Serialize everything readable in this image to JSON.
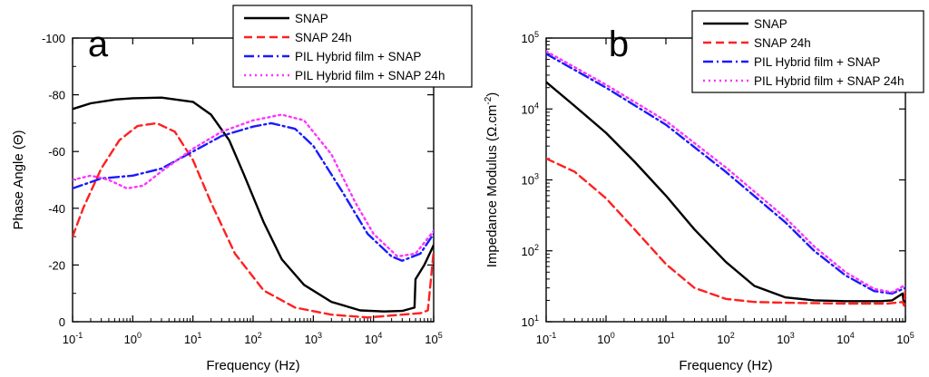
{
  "chart_data": [
    {
      "type": "line",
      "panel_label": "a",
      "xlabel": "Frequency (Hz)",
      "ylabel": "Phase Angle (Θ)",
      "xscale": "log",
      "xlim": [
        0.1,
        100000
      ],
      "ylim": [
        0,
        -100
      ],
      "xticks": [
        0.1,
        1,
        10,
        100,
        1000,
        10000,
        100000
      ],
      "xtick_labels": [
        {
          "base": "10",
          "exp": "-1"
        },
        {
          "base": "10",
          "exp": "0"
        },
        {
          "base": "10",
          "exp": "1"
        },
        {
          "base": "10",
          "exp": "2"
        },
        {
          "base": "10",
          "exp": "3"
        },
        {
          "base": "10",
          "exp": "4"
        },
        {
          "base": "10",
          "exp": "5"
        }
      ],
      "yticks": [
        -100,
        -80,
        -60,
        -40,
        -20,
        0
      ],
      "ytick_labels": [
        "-100",
        "-80",
        "-60",
        "-40",
        "-20",
        "0"
      ],
      "legend_position": "top-right",
      "series": [
        {
          "name": "SNAP",
          "color": "#000000",
          "dash": "solid",
          "points": [
            [
              0.1,
              -75
            ],
            [
              0.2,
              -77
            ],
            [
              0.5,
              -78.3
            ],
            [
              1,
              -78.8
            ],
            [
              3,
              -79
            ],
            [
              10,
              -77.5
            ],
            [
              20,
              -73
            ],
            [
              40,
              -64
            ],
            [
              70,
              -52
            ],
            [
              150,
              -35
            ],
            [
              300,
              -22
            ],
            [
              700,
              -13
            ],
            [
              2000,
              -7
            ],
            [
              6000,
              -4
            ],
            [
              15000,
              -3.6
            ],
            [
              30000,
              -3.8
            ],
            [
              48000,
              -5
            ],
            [
              50000,
              -15
            ],
            [
              70000,
              -20
            ],
            [
              100000,
              -27
            ]
          ]
        },
        {
          "name": "SNAP 24h",
          "color": "#ff2020",
          "dash": "dashed",
          "points": [
            [
              0.1,
              -30
            ],
            [
              0.15,
              -40
            ],
            [
              0.3,
              -54
            ],
            [
              0.6,
              -64
            ],
            [
              1.2,
              -69
            ],
            [
              2.5,
              -70
            ],
            [
              5,
              -67
            ],
            [
              10,
              -57
            ],
            [
              20,
              -42
            ],
            [
              50,
              -24
            ],
            [
              150,
              -11
            ],
            [
              500,
              -5
            ],
            [
              2000,
              -2.5
            ],
            [
              8000,
              -1.5
            ],
            [
              30000,
              -2.5
            ],
            [
              60000,
              -3
            ],
            [
              80000,
              -4
            ],
            [
              90000,
              -15
            ],
            [
              100000,
              -25
            ]
          ]
        },
        {
          "name": "PIL Hybrid film + SNAP",
          "color": "#1a1aff",
          "dash": "dashdot",
          "points": [
            [
              0.1,
              -47
            ],
            [
              0.3,
              -50.5
            ],
            [
              1,
              -51.5
            ],
            [
              3,
              -54
            ],
            [
              10,
              -60
            ],
            [
              30,
              -65.5
            ],
            [
              100,
              -68.8
            ],
            [
              200,
              -70
            ],
            [
              500,
              -68
            ],
            [
              1000,
              -62
            ],
            [
              3000,
              -46
            ],
            [
              8000,
              -31
            ],
            [
              20000,
              -23
            ],
            [
              30000,
              -21.5
            ],
            [
              60000,
              -24
            ],
            [
              100000,
              -31
            ]
          ]
        },
        {
          "name": "PIL Hybrid film + SNAP 24h",
          "color": "#ff33ff",
          "dash": "dotted",
          "points": [
            [
              0.1,
              -50
            ],
            [
              0.2,
              -51.5
            ],
            [
              0.4,
              -50
            ],
            [
              0.8,
              -47
            ],
            [
              1.5,
              -48
            ],
            [
              3,
              -53
            ],
            [
              10,
              -61
            ],
            [
              30,
              -67
            ],
            [
              100,
              -71
            ],
            [
              300,
              -73
            ],
            [
              700,
              -71
            ],
            [
              2000,
              -59
            ],
            [
              5000,
              -42
            ],
            [
              10000,
              -31
            ],
            [
              25000,
              -23
            ],
            [
              50000,
              -24
            ],
            [
              100000,
              -32
            ]
          ]
        }
      ]
    },
    {
      "type": "line",
      "panel_label": "b",
      "xlabel": "Frequency (Hz)",
      "ylabel_main": "Impedance Modulus (Ω.cm",
      "ylabel_sup": "-2",
      "ylabel_close": ")",
      "xscale": "log",
      "yscale": "log",
      "xlim": [
        0.1,
        100000
      ],
      "ylim": [
        10,
        100000
      ],
      "xticks": [
        0.1,
        1,
        10,
        100,
        1000,
        10000,
        100000
      ],
      "xtick_labels": [
        {
          "base": "10",
          "exp": "-1"
        },
        {
          "base": "10",
          "exp": "0"
        },
        {
          "base": "10",
          "exp": "1"
        },
        {
          "base": "10",
          "exp": "2"
        },
        {
          "base": "10",
          "exp": "3"
        },
        {
          "base": "10",
          "exp": "4"
        },
        {
          "base": "10",
          "exp": "5"
        }
      ],
      "yticks": [
        10,
        100,
        1000,
        10000,
        100000
      ],
      "ytick_labels": [
        {
          "base": "10",
          "exp": "1"
        },
        {
          "base": "10",
          "exp": "2"
        },
        {
          "base": "10",
          "exp": "3"
        },
        {
          "base": "10",
          "exp": "4"
        },
        {
          "base": "10",
          "exp": "5"
        }
      ],
      "legend_position": "top-right",
      "series": [
        {
          "name": "SNAP",
          "color": "#000000",
          "dash": "solid",
          "points": [
            [
              0.1,
              24000
            ],
            [
              0.3,
              11000
            ],
            [
              1,
              4600
            ],
            [
              3,
              1800
            ],
            [
              10,
              600
            ],
            [
              30,
              200
            ],
            [
              100,
              70
            ],
            [
              300,
              32
            ],
            [
              1000,
              22
            ],
            [
              3000,
              20
            ],
            [
              10000,
              19.5
            ],
            [
              40000,
              19.5
            ],
            [
              60000,
              20
            ],
            [
              90000,
              25
            ],
            [
              95000,
              17
            ],
            [
              100000,
              27
            ]
          ]
        },
        {
          "name": "SNAP 24h",
          "color": "#ff2020",
          "dash": "dashed",
          "points": [
            [
              0.1,
              2000
            ],
            [
              0.3,
              1300
            ],
            [
              1,
              550
            ],
            [
              3,
              200
            ],
            [
              10,
              65
            ],
            [
              30,
              30
            ],
            [
              100,
              21
            ],
            [
              300,
              19
            ],
            [
              1000,
              18.5
            ],
            [
              10000,
              18
            ],
            [
              50000,
              18
            ],
            [
              90000,
              19
            ],
            [
              95000,
              17
            ],
            [
              100000,
              28
            ]
          ]
        },
        {
          "name": "PIL Hybrid film + SNAP",
          "color": "#1a1aff",
          "dash": "dashdot",
          "points": [
            [
              0.1,
              60000
            ],
            [
              1,
              20000
            ],
            [
              10,
              6000
            ],
            [
              100,
              1300
            ],
            [
              1000,
              250
            ],
            [
              3000,
              100
            ],
            [
              10000,
              45
            ],
            [
              30000,
              27
            ],
            [
              60000,
              25
            ],
            [
              100000,
              30
            ]
          ]
        },
        {
          "name": "PIL Hybrid film + SNAP 24h",
          "color": "#ff33ff",
          "dash": "dotted",
          "points": [
            [
              0.1,
              65000
            ],
            [
              1,
              22000
            ],
            [
              10,
              6800
            ],
            [
              100,
              1500
            ],
            [
              1000,
              290
            ],
            [
              3000,
              115
            ],
            [
              10000,
              50
            ],
            [
              30000,
              29
            ],
            [
              60000,
              26
            ],
            [
              100000,
              33
            ]
          ]
        }
      ]
    }
  ]
}
